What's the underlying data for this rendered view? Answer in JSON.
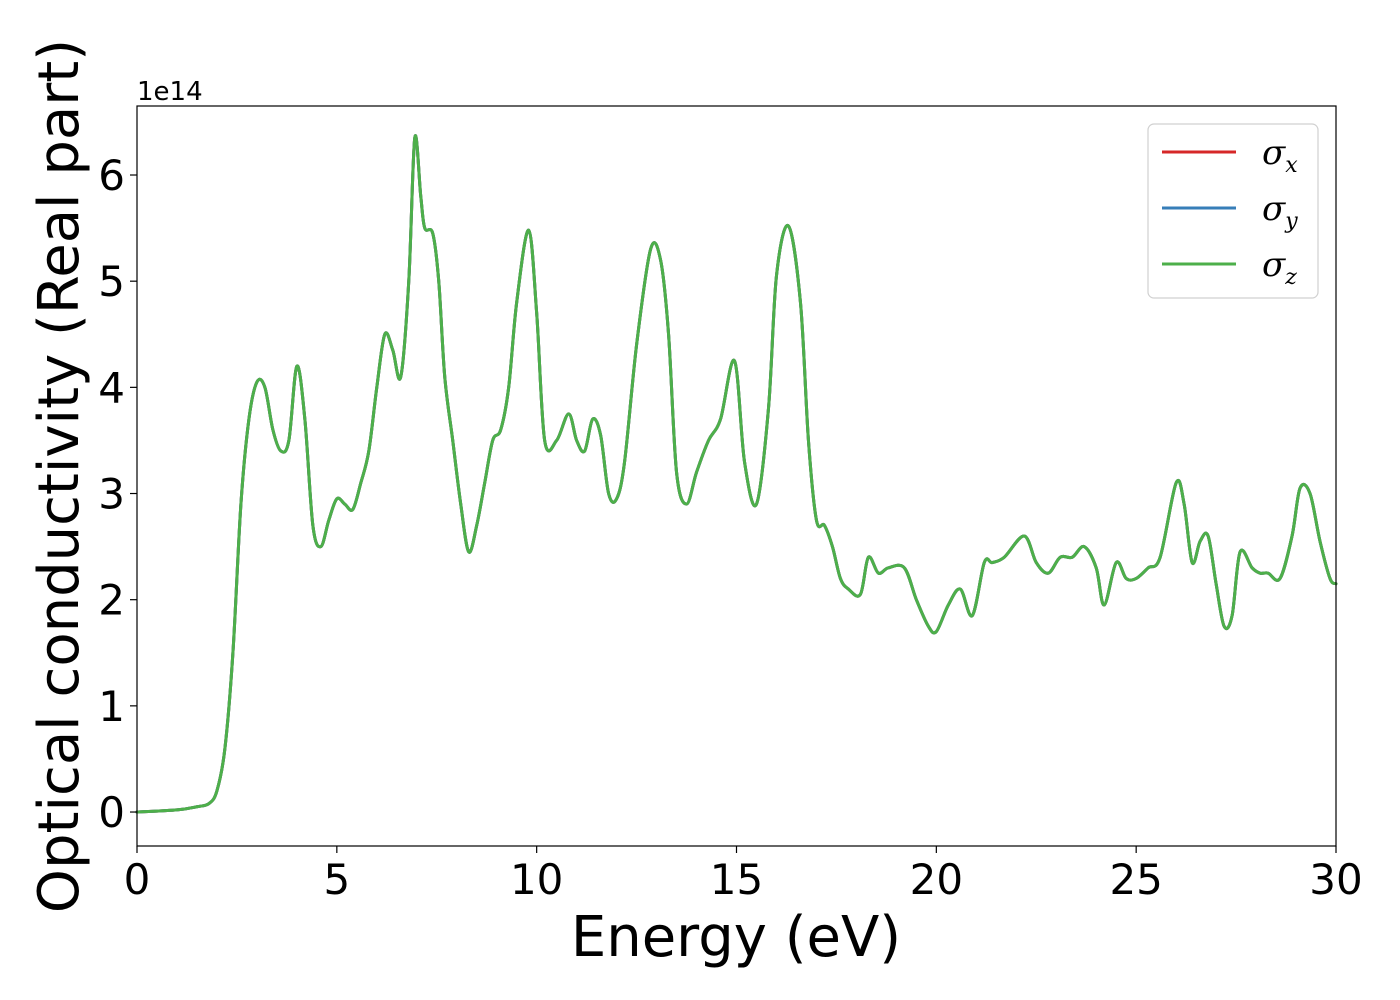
{
  "chart_data": {
    "type": "line",
    "xlabel": "Energy (eV)",
    "ylabel": "Optical conductivity (Real part)",
    "y_offset_label": "1e14",
    "xlim": [
      0,
      30
    ],
    "ylim": [
      -0.32,
      6.65
    ],
    "xticks": [
      0,
      5,
      10,
      15,
      20,
      25,
      30
    ],
    "yticks": [
      0,
      1,
      2,
      3,
      4,
      5,
      6
    ],
    "grid": false,
    "legend_position": "top-right",
    "series": [
      {
        "name": "σx",
        "legend_symbol": "σ",
        "legend_sub": "x",
        "color": "#d62728",
        "x": [
          0,
          1,
          1.5,
          1.8,
          2.0,
          2.2,
          2.4,
          2.6,
          2.8,
          3.0,
          3.2,
          3.4,
          3.6,
          3.8,
          4.0,
          4.2,
          4.4,
          4.6,
          4.8,
          5.0,
          5.2,
          5.4,
          5.6,
          5.8,
          6.0,
          6.2,
          6.4,
          6.6,
          6.8,
          6.95,
          7.1,
          7.2,
          7.4,
          7.55,
          7.7,
          7.9,
          8.1,
          8.3,
          8.5,
          8.7,
          8.9,
          9.1,
          9.3,
          9.5,
          9.8,
          10.0,
          10.2,
          10.5,
          10.8,
          11.0,
          11.2,
          11.4,
          11.6,
          11.8,
          12.0,
          12.2,
          12.5,
          12.85,
          13.1,
          13.3,
          13.5,
          13.75,
          14.0,
          14.3,
          14.6,
          14.95,
          15.2,
          15.5,
          15.8,
          16.0,
          16.3,
          16.6,
          16.8,
          17.0,
          17.2,
          17.4,
          17.6,
          17.8,
          18.1,
          18.3,
          18.55,
          18.8,
          19.2,
          19.5,
          19.8,
          20.0,
          20.3,
          20.6,
          20.9,
          21.2,
          21.4,
          21.7,
          22.2,
          22.5,
          22.8,
          23.1,
          23.4,
          23.7,
          24.0,
          24.2,
          24.5,
          24.75,
          25.0,
          25.3,
          25.6,
          26.0,
          26.2,
          26.4,
          26.6,
          26.8,
          27.0,
          27.2,
          27.4,
          27.6,
          27.9,
          28.1,
          28.3,
          28.6,
          28.9,
          29.1,
          29.35,
          29.6,
          29.85,
          30.0
        ],
        "values": [
          0,
          0.02,
          0.05,
          0.08,
          0.2,
          0.6,
          1.5,
          2.9,
          3.7,
          4.05,
          4.0,
          3.6,
          3.4,
          3.5,
          4.2,
          3.7,
          2.7,
          2.5,
          2.75,
          2.95,
          2.9,
          2.85,
          3.1,
          3.4,
          4.0,
          4.5,
          4.35,
          4.1,
          5.0,
          6.35,
          5.8,
          5.5,
          5.45,
          5.0,
          4.1,
          3.5,
          2.9,
          2.45,
          2.7,
          3.1,
          3.5,
          3.6,
          4.0,
          4.8,
          5.48,
          4.7,
          3.5,
          3.5,
          3.75,
          3.5,
          3.4,
          3.7,
          3.55,
          3.0,
          2.95,
          3.3,
          4.4,
          5.3,
          5.2,
          4.5,
          3.2,
          2.9,
          3.2,
          3.5,
          3.7,
          4.25,
          3.3,
          2.9,
          3.8,
          5.05,
          5.52,
          4.8,
          3.5,
          2.75,
          2.7,
          2.5,
          2.2,
          2.1,
          2.05,
          2.4,
          2.25,
          2.3,
          2.3,
          2.0,
          1.75,
          1.7,
          1.95,
          2.1,
          1.85,
          2.35,
          2.35,
          2.4,
          2.6,
          2.35,
          2.25,
          2.4,
          2.4,
          2.5,
          2.3,
          1.95,
          2.35,
          2.2,
          2.2,
          2.3,
          2.4,
          3.1,
          2.9,
          2.35,
          2.55,
          2.6,
          2.15,
          1.75,
          1.85,
          2.45,
          2.3,
          2.25,
          2.25,
          2.2,
          2.6,
          3.05,
          3.0,
          2.55,
          2.2,
          2.15
        ]
      },
      {
        "name": "σy",
        "legend_symbol": "σ",
        "legend_sub": "y",
        "color": "#377eb8",
        "x": [
          0,
          1,
          1.5,
          1.8,
          2.0,
          2.2,
          2.4,
          2.6,
          2.8,
          3.0,
          3.2,
          3.4,
          3.6,
          3.8,
          4.0,
          4.2,
          4.4,
          4.6,
          4.8,
          5.0,
          5.2,
          5.4,
          5.6,
          5.8,
          6.0,
          6.2,
          6.4,
          6.6,
          6.8,
          6.95,
          7.1,
          7.2,
          7.4,
          7.55,
          7.7,
          7.9,
          8.1,
          8.3,
          8.5,
          8.7,
          8.9,
          9.1,
          9.3,
          9.5,
          9.8,
          10.0,
          10.2,
          10.5,
          10.8,
          11.0,
          11.2,
          11.4,
          11.6,
          11.8,
          12.0,
          12.2,
          12.5,
          12.85,
          13.1,
          13.3,
          13.5,
          13.75,
          14.0,
          14.3,
          14.6,
          14.95,
          15.2,
          15.5,
          15.8,
          16.0,
          16.3,
          16.6,
          16.8,
          17.0,
          17.2,
          17.4,
          17.6,
          17.8,
          18.1,
          18.3,
          18.55,
          18.8,
          19.2,
          19.5,
          19.8,
          20.0,
          20.3,
          20.6,
          20.9,
          21.2,
          21.4,
          21.7,
          22.2,
          22.5,
          22.8,
          23.1,
          23.4,
          23.7,
          24.0,
          24.2,
          24.5,
          24.75,
          25.0,
          25.3,
          25.6,
          26.0,
          26.2,
          26.4,
          26.6,
          26.8,
          27.0,
          27.2,
          27.4,
          27.6,
          27.9,
          28.1,
          28.3,
          28.6,
          28.9,
          29.1,
          29.35,
          29.6,
          29.85,
          30.0
        ],
        "values": [
          0,
          0.02,
          0.05,
          0.08,
          0.2,
          0.6,
          1.5,
          2.9,
          3.7,
          4.05,
          4.0,
          3.6,
          3.4,
          3.5,
          4.2,
          3.7,
          2.7,
          2.5,
          2.75,
          2.95,
          2.9,
          2.85,
          3.1,
          3.4,
          4.0,
          4.5,
          4.35,
          4.1,
          5.0,
          6.35,
          5.8,
          5.5,
          5.45,
          5.0,
          4.1,
          3.5,
          2.9,
          2.45,
          2.7,
          3.1,
          3.5,
          3.6,
          4.0,
          4.8,
          5.48,
          4.7,
          3.5,
          3.5,
          3.75,
          3.5,
          3.4,
          3.7,
          3.55,
          3.0,
          2.95,
          3.3,
          4.4,
          5.3,
          5.2,
          4.5,
          3.2,
          2.9,
          3.2,
          3.5,
          3.7,
          4.25,
          3.3,
          2.9,
          3.8,
          5.05,
          5.52,
          4.8,
          3.5,
          2.75,
          2.7,
          2.5,
          2.2,
          2.1,
          2.05,
          2.4,
          2.25,
          2.3,
          2.3,
          2.0,
          1.75,
          1.7,
          1.95,
          2.1,
          1.85,
          2.35,
          2.35,
          2.4,
          2.6,
          2.35,
          2.25,
          2.4,
          2.4,
          2.5,
          2.3,
          1.95,
          2.35,
          2.2,
          2.2,
          2.3,
          2.4,
          3.1,
          2.9,
          2.35,
          2.55,
          2.6,
          2.15,
          1.75,
          1.85,
          2.45,
          2.3,
          2.25,
          2.25,
          2.2,
          2.6,
          3.05,
          3.0,
          2.55,
          2.2,
          2.15
        ]
      },
      {
        "name": "σz",
        "legend_symbol": "σ",
        "legend_sub": "z",
        "color": "#4daf4a",
        "x": [
          0,
          1,
          1.5,
          1.8,
          2.0,
          2.2,
          2.4,
          2.6,
          2.8,
          3.0,
          3.2,
          3.4,
          3.6,
          3.8,
          4.0,
          4.2,
          4.4,
          4.6,
          4.8,
          5.0,
          5.2,
          5.4,
          5.6,
          5.8,
          6.0,
          6.2,
          6.4,
          6.6,
          6.8,
          6.95,
          7.1,
          7.2,
          7.4,
          7.55,
          7.7,
          7.9,
          8.1,
          8.3,
          8.5,
          8.7,
          8.9,
          9.1,
          9.3,
          9.5,
          9.8,
          10.0,
          10.2,
          10.5,
          10.8,
          11.0,
          11.2,
          11.4,
          11.6,
          11.8,
          12.0,
          12.2,
          12.5,
          12.85,
          13.1,
          13.3,
          13.5,
          13.75,
          14.0,
          14.3,
          14.6,
          14.95,
          15.2,
          15.5,
          15.8,
          16.0,
          16.3,
          16.6,
          16.8,
          17.0,
          17.2,
          17.4,
          17.6,
          17.8,
          18.1,
          18.3,
          18.55,
          18.8,
          19.2,
          19.5,
          19.8,
          20.0,
          20.3,
          20.6,
          20.9,
          21.2,
          21.4,
          21.7,
          22.2,
          22.5,
          22.8,
          23.1,
          23.4,
          23.7,
          24.0,
          24.2,
          24.5,
          24.75,
          25.0,
          25.3,
          25.6,
          26.0,
          26.2,
          26.4,
          26.6,
          26.8,
          27.0,
          27.2,
          27.4,
          27.6,
          27.9,
          28.1,
          28.3,
          28.6,
          28.9,
          29.1,
          29.35,
          29.6,
          29.85,
          30.0
        ],
        "values": [
          0,
          0.02,
          0.05,
          0.08,
          0.2,
          0.6,
          1.5,
          2.9,
          3.7,
          4.05,
          4.0,
          3.6,
          3.4,
          3.5,
          4.2,
          3.7,
          2.7,
          2.5,
          2.75,
          2.95,
          2.9,
          2.85,
          3.1,
          3.4,
          4.0,
          4.5,
          4.35,
          4.1,
          5.0,
          6.35,
          5.8,
          5.5,
          5.45,
          5.0,
          4.1,
          3.5,
          2.9,
          2.45,
          2.7,
          3.1,
          3.5,
          3.6,
          4.0,
          4.8,
          5.48,
          4.7,
          3.5,
          3.5,
          3.75,
          3.5,
          3.4,
          3.7,
          3.55,
          3.0,
          2.95,
          3.3,
          4.4,
          5.3,
          5.2,
          4.5,
          3.2,
          2.9,
          3.2,
          3.5,
          3.7,
          4.25,
          3.3,
          2.9,
          3.8,
          5.05,
          5.52,
          4.8,
          3.5,
          2.75,
          2.7,
          2.5,
          2.2,
          2.1,
          2.05,
          2.4,
          2.25,
          2.3,
          2.3,
          2.0,
          1.75,
          1.7,
          1.95,
          2.1,
          1.85,
          2.35,
          2.35,
          2.4,
          2.6,
          2.35,
          2.25,
          2.4,
          2.4,
          2.5,
          2.3,
          1.95,
          2.35,
          2.2,
          2.2,
          2.3,
          2.4,
          3.1,
          2.9,
          2.35,
          2.55,
          2.6,
          2.15,
          1.75,
          1.85,
          2.45,
          2.3,
          2.25,
          2.25,
          2.2,
          2.6,
          3.05,
          3.0,
          2.55,
          2.2,
          2.15
        ]
      }
    ]
  }
}
